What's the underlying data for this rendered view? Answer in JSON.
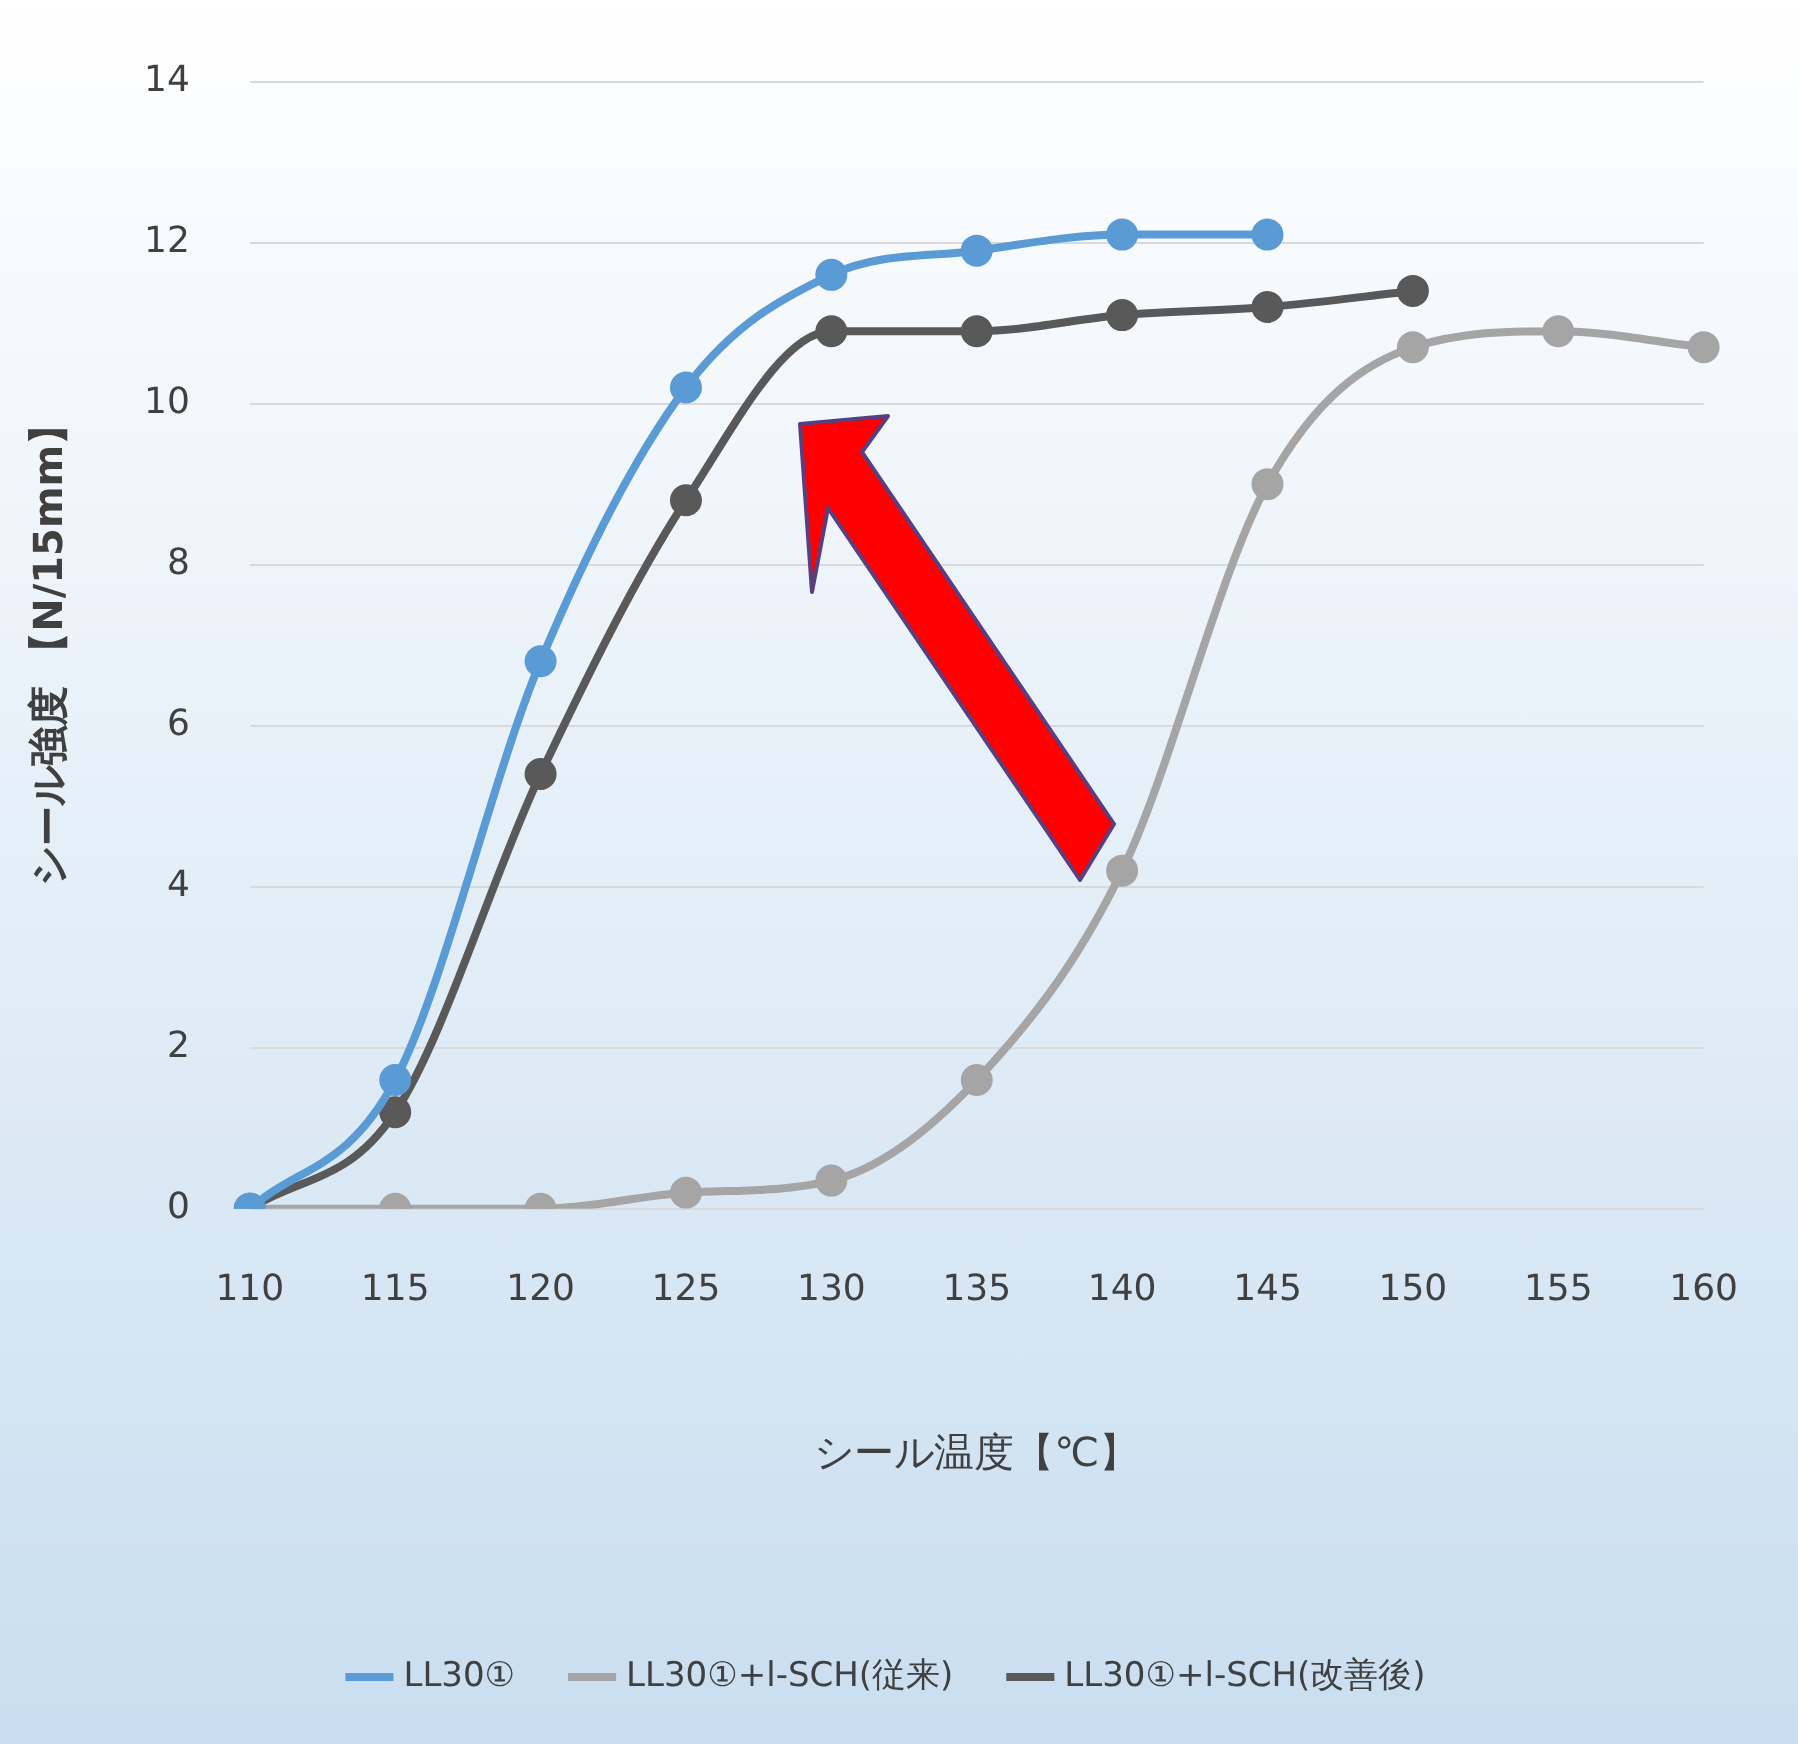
{
  "chart_data": {
    "type": "line",
    "xlabel": "シール温度【℃】",
    "ylabel": "シール強度 【N/15mm】",
    "categories": [
      "110",
      "115",
      "120",
      "125",
      "130",
      "135",
      "140",
      "145",
      "150",
      "155",
      "160"
    ],
    "series": [
      {
        "name": "LL30①",
        "color": "#5b9bd5",
        "values": [
          0,
          1.6,
          6.8,
          10.2,
          11.6,
          11.9,
          12.1,
          12.1,
          null,
          null,
          null
        ]
      },
      {
        "name": "LL30①+l-SCH(従来)",
        "color": "#a5a5a5",
        "values": [
          0,
          0,
          0,
          0.2,
          0.35,
          1.6,
          4.2,
          9.0,
          10.7,
          10.9,
          10.7
        ]
      },
      {
        "name": "LL30①+l-SCH(改善後)",
        "color": "#595959",
        "values": [
          0,
          1.2,
          5.4,
          8.8,
          10.9,
          10.9,
          11.1,
          11.2,
          11.4,
          null,
          null
        ]
      }
    ],
    "ylim": [
      0,
      14
    ],
    "yticks": [
      0,
      2,
      4,
      6,
      8,
      10,
      12,
      14
    ],
    "grid": "y",
    "legend": "bottom",
    "marker": "circle",
    "line_style": "solid"
  }
}
